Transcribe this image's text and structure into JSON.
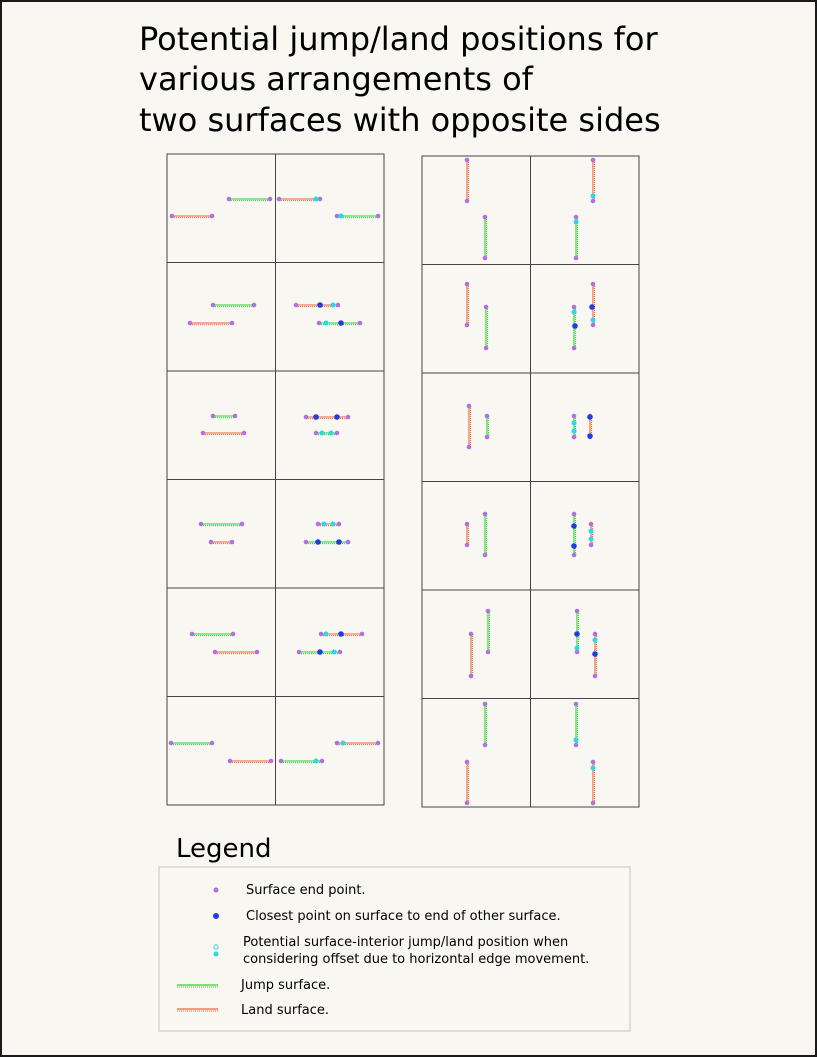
{
  "title": {
    "line1": "Potential jump/land positions for",
    "line2": "various arrangements of",
    "line3": "two surfaces with opposite sides"
  },
  "legend": {
    "heading": "Legend",
    "items": [
      {
        "key": "end_point",
        "label": "Surface end point."
      },
      {
        "key": "closest_point",
        "label": "Closest point on surface to end of other surface."
      },
      {
        "key": "interior_position",
        "label_line1": "Potential surface-interior jump/land position when",
        "label_line2": "considering offset due to horizontal edge movement."
      },
      {
        "key": "jump_surface",
        "label": "Jump surface."
      },
      {
        "key": "land_surface",
        "label": "Land surface."
      }
    ]
  },
  "colors": {
    "background": "#f8f7f2",
    "frame": "#1a1a1a",
    "grid_line": "#444444",
    "jump_surface": "#2ed12e",
    "land_surface": "#f2613a",
    "end_point": "#b070e0",
    "closest_point": "#1f3de0",
    "interior_position": "#2ed7e8"
  },
  "icons": {
    "end_point": "dot-icon",
    "closest_point": "dot-icon",
    "interior_position": "double-dot-icon",
    "jump_surface": "green-line-icon",
    "land_surface": "red-line-icon"
  }
}
